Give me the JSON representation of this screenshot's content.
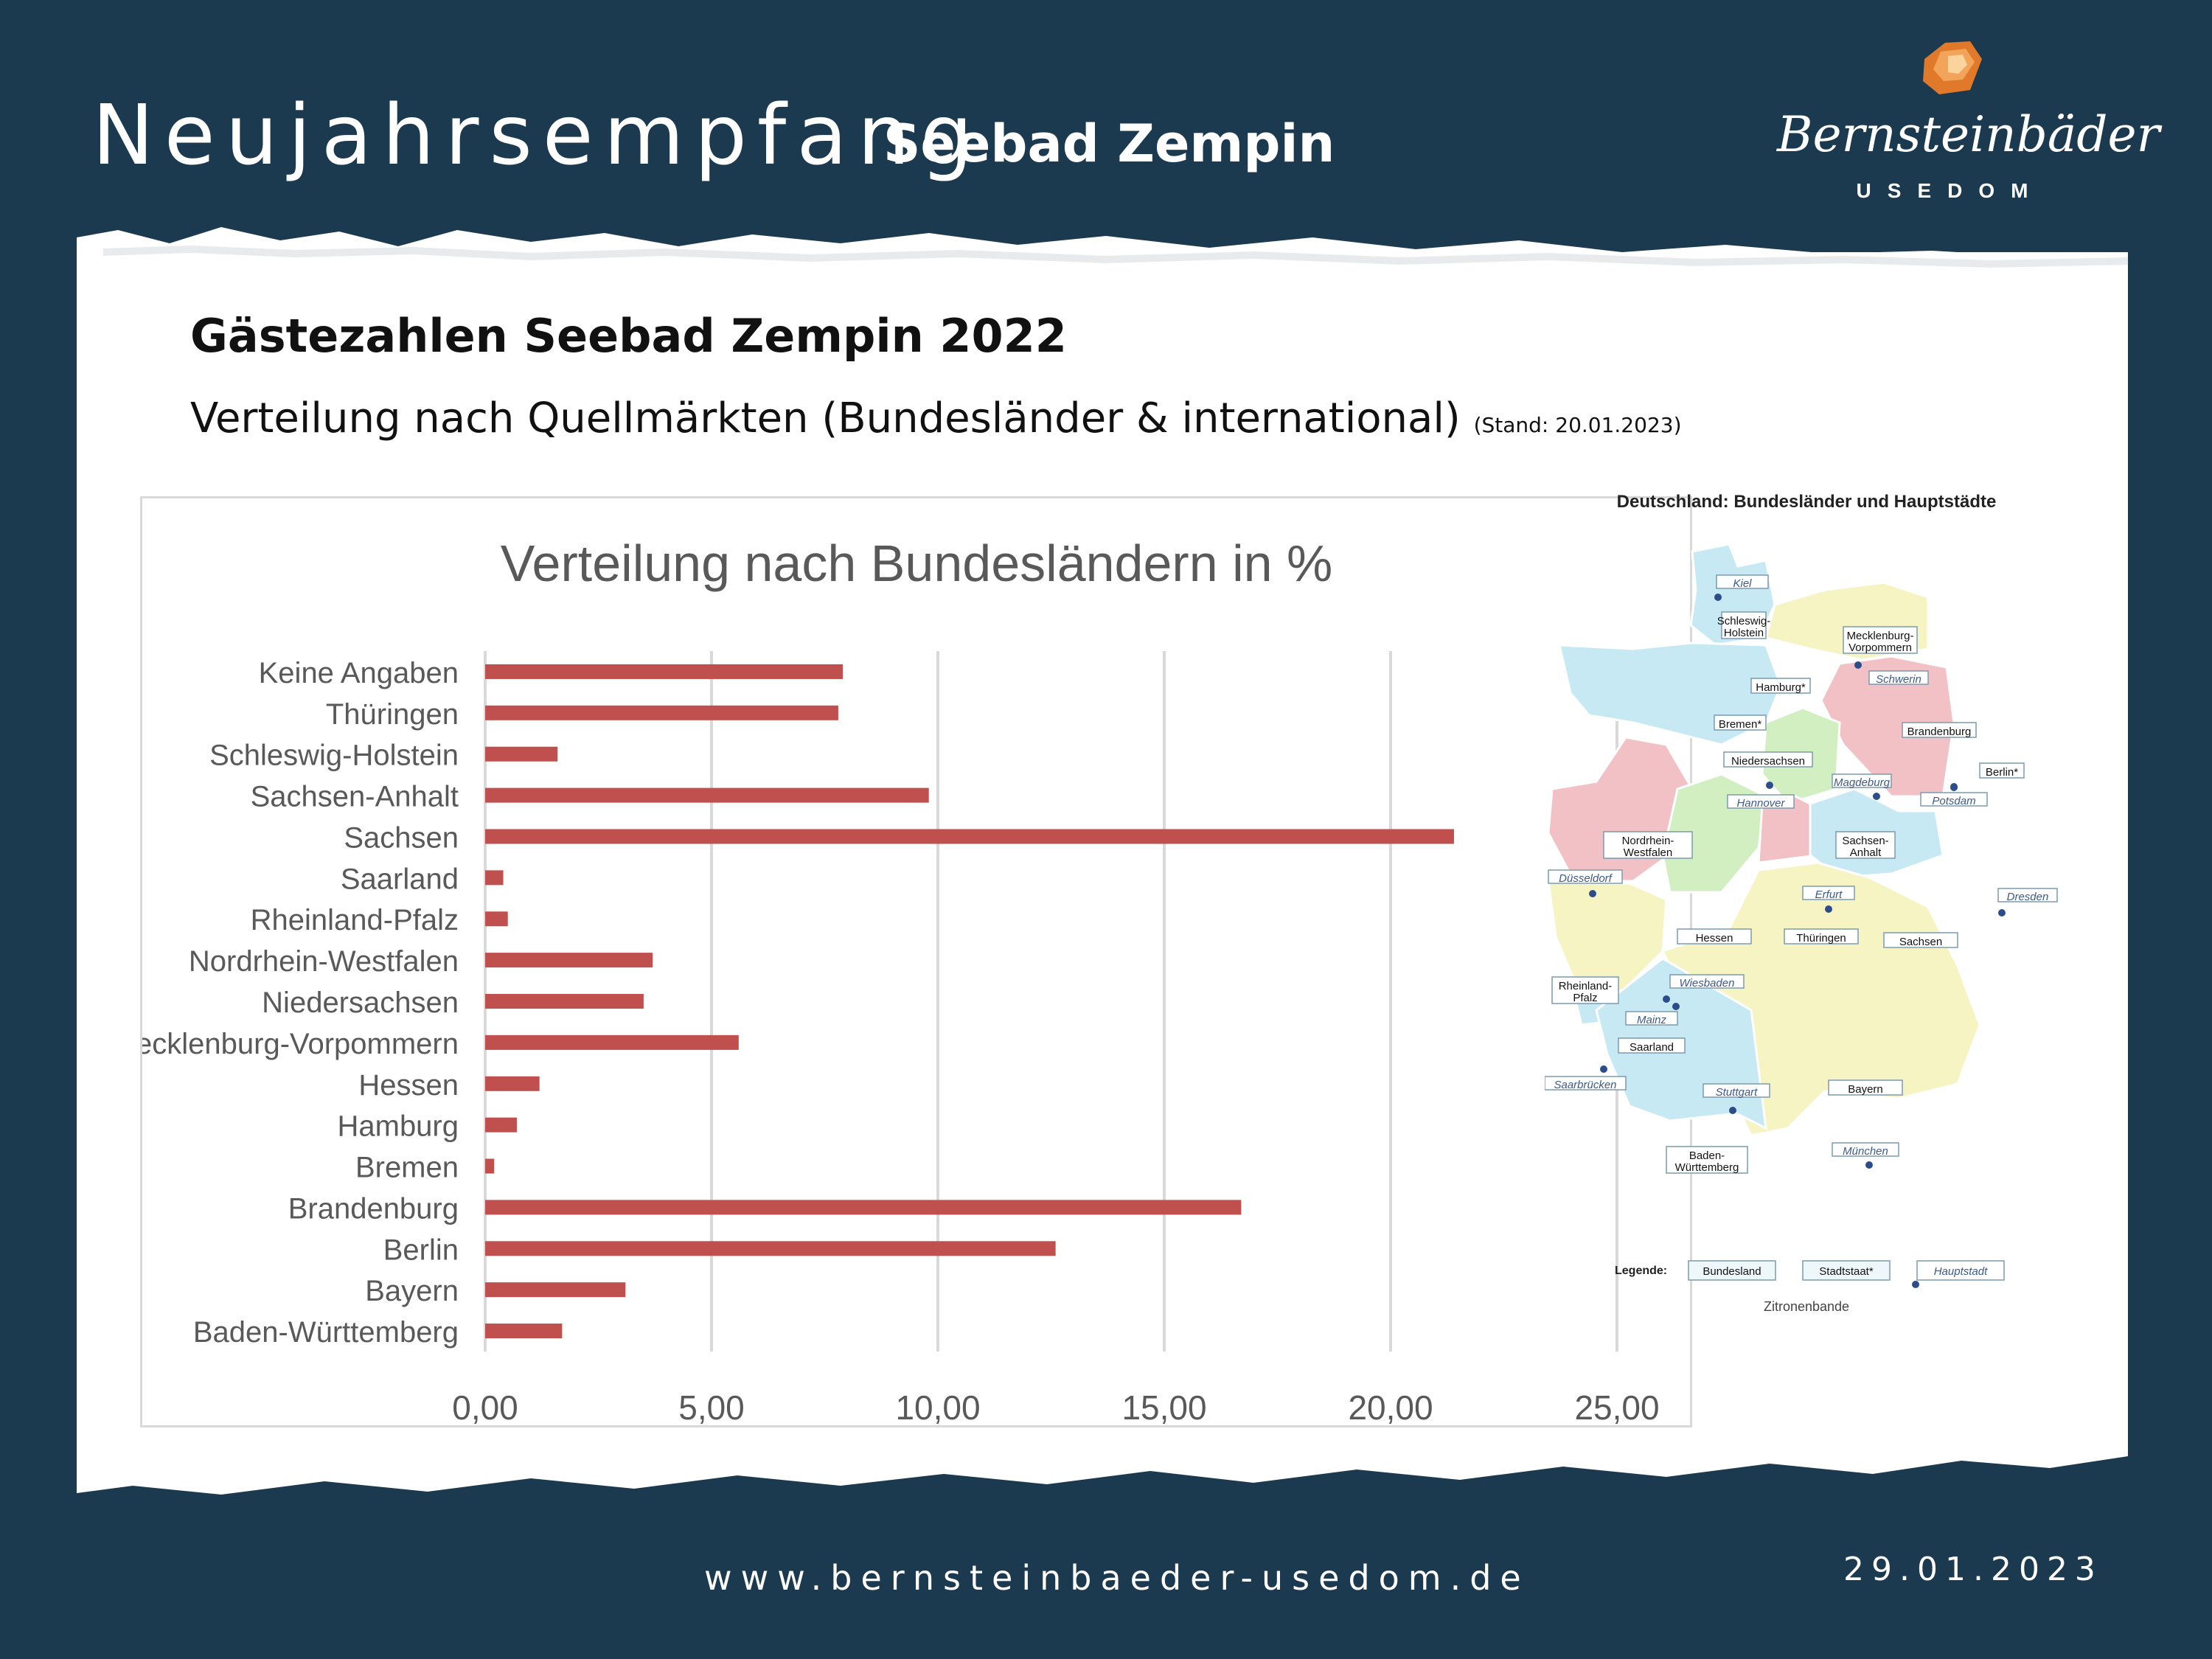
{
  "header": {
    "title": "Neujahrsempfang",
    "subtitle": "Seebad Zempin"
  },
  "logo": {
    "name": "Bernsteinbäder",
    "tagline": "USEDOM",
    "gem_color": "#e07a2a"
  },
  "section": {
    "title": "Gästezahlen Seebad Zempin 2022",
    "subtitle": "Verteilung nach Quellmärkten (Bundesländer & international)",
    "stand": "(Stand: 20.01.2023)"
  },
  "chart_data": {
    "type": "bar",
    "orientation": "horizontal",
    "title": "Verteilung nach Bundesländern in %",
    "xlabel": "",
    "ylabel": "",
    "xlim": [
      0,
      25
    ],
    "x_ticks": [
      "0,00",
      "5,00",
      "10,00",
      "15,00",
      "20,00",
      "25,00"
    ],
    "grid": "vertical",
    "bar_color": "#c0504d",
    "categories": [
      "Keine Angaben",
      "Thüringen",
      "Schleswig-Holstein",
      "Sachsen-Anhalt",
      "Sachsen",
      "Saarland",
      "Rheinland-Pfalz",
      "Nordrhein-Westfalen",
      "Niedersachsen",
      "Mecklenburg-Vorpommern",
      "Hessen",
      "Hamburg",
      "Bremen",
      "Brandenburg",
      "Berlin",
      "Bayern",
      "Baden-Württemberg"
    ],
    "values": [
      7.9,
      7.8,
      1.6,
      9.8,
      21.4,
      0.4,
      0.5,
      3.7,
      3.5,
      5.6,
      1.2,
      0.7,
      0.2,
      16.7,
      12.6,
      3.1,
      1.7
    ]
  },
  "map": {
    "title": "Deutschland: Bundesländer und Hauptstädte",
    "credit": "Zitronenbande",
    "legend": {
      "label": "Legende:",
      "items": [
        "Bundesland",
        "Stadtstaat*",
        "Hauptstadt"
      ]
    },
    "colors": {
      "blue": "#c6e9f3",
      "green": "#d2efc2",
      "yellow": "#f7f4c4",
      "pink": "#f2c1c6",
      "border": "#ffffff"
    },
    "states": [
      "Schleswig-Holstein",
      "Mecklenburg-Vorpommern",
      "Hamburg*",
      "Bremen*",
      "Brandenburg",
      "Berlin*",
      "Niedersachsen",
      "Sachsen-Anhalt",
      "Nordrhein-Westfalen",
      "Hessen",
      "Thüringen",
      "Sachsen",
      "Rheinland-Pfalz",
      "Saarland",
      "Bayern",
      "Baden-Württemberg"
    ],
    "capitals": [
      "Kiel",
      "Schwerin",
      "Magdeburg",
      "Hannover",
      "Potsdam",
      "Düsseldorf",
      "Erfurt",
      "Dresden",
      "Wiesbaden",
      "Mainz",
      "Saarbrücken",
      "Stuttgart",
      "München"
    ]
  },
  "footer": {
    "url": "www.bernsteinbaeder-usedom.de",
    "date": "29.01.2023"
  },
  "colors": {
    "background": "#1c3a4f",
    "paper": "#ffffff"
  }
}
